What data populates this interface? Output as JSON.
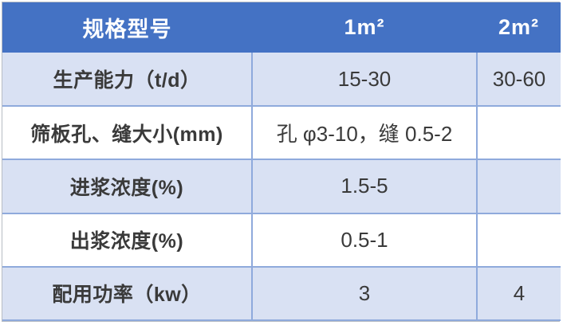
{
  "table": {
    "header": {
      "spec_label": "规格型号",
      "col_1m2": "1m²",
      "col_2m2": "2m²"
    },
    "rows": [
      {
        "label": "生产能力（t/d）",
        "value_1m2": "15-30",
        "value_2m2": "30-60"
      },
      {
        "label": "筛板孔、缝大小(mm)",
        "value_1m2": "孔 φ3-10，缝 0.5-2",
        "value_2m2": ""
      },
      {
        "label": "进浆浓度(%)",
        "value_1m2": "1.5-5",
        "value_2m2": ""
      },
      {
        "label": "出浆浓度(%)",
        "value_1m2": "0.5-1",
        "value_2m2": ""
      },
      {
        "label": "配用功率（kw）",
        "value_1m2": "3",
        "value_2m2": "4"
      }
    ]
  },
  "colors": {
    "header_bg": "#4472C4",
    "header_text": "#FFFFFF",
    "row_alt_bg": "#D9E1F3",
    "row_bg": "#FFFFFF",
    "grid_border": "#8FAADC",
    "outer_border": "#B7BCC4",
    "body_text": "#3A3A3A"
  }
}
